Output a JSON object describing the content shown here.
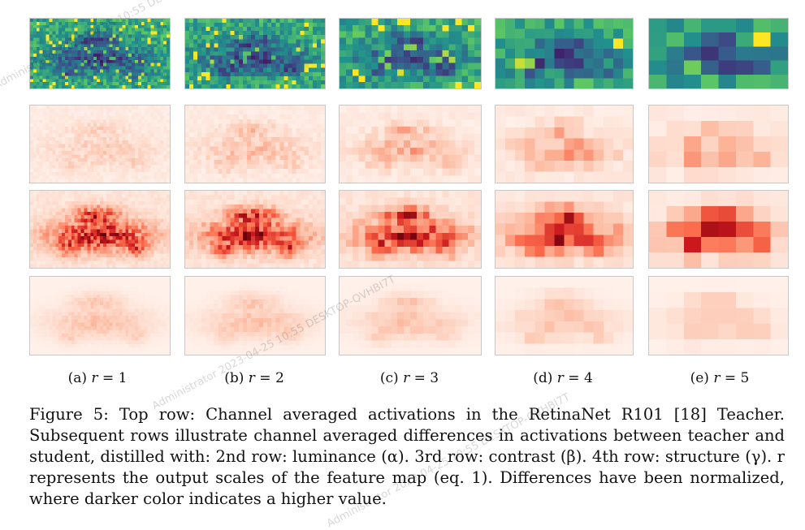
{
  "figure": {
    "subcaptions": [
      {
        "label": "(a)",
        "var": "r",
        "eq": " = ",
        "value": "1"
      },
      {
        "label": "(b)",
        "var": "r",
        "eq": " = ",
        "value": "2"
      },
      {
        "label": "(c)",
        "var": "r",
        "eq": " = ",
        "value": "3"
      },
      {
        "label": "(d)",
        "var": "r",
        "eq": " = ",
        "value": "4"
      },
      {
        "label": "(e)",
        "var": "r",
        "eq": " = ",
        "value": "5"
      }
    ],
    "caption": "Figure 5: Top row: Channel averaged activations in the RetinaNet R101 [18] Teacher. Subsequent rows illustrate channel averaged differences in activations between teacher and student, distilled with: 2nd row: luminance (α). 3rd row: contrast (β). 4th row: structure (γ). r represents the output scales of the feature map (eq. 1). Differences have been normalized, where darker color indicates a higher value.",
    "rows": [
      "teacher-activations",
      "luminance-difference",
      "contrast-difference",
      "structure-difference"
    ],
    "colors": {
      "viridis_low": "#3b2a74",
      "viridis_mid": "#21918c",
      "viridis_high": "#fde725",
      "reds_low": "#fff5f0",
      "reds_high": "#67000d"
    }
  },
  "watermarks": [
    "Administrator 2023-04-25 10:55 DESKTOP-QVHBI7T",
    "Administrator 2023-04-25 10:55 DESKTOP-QVHBI7T",
    "Administrator 2023-04-25 10:55 DESKTOP-QVHBI7T"
  ]
}
